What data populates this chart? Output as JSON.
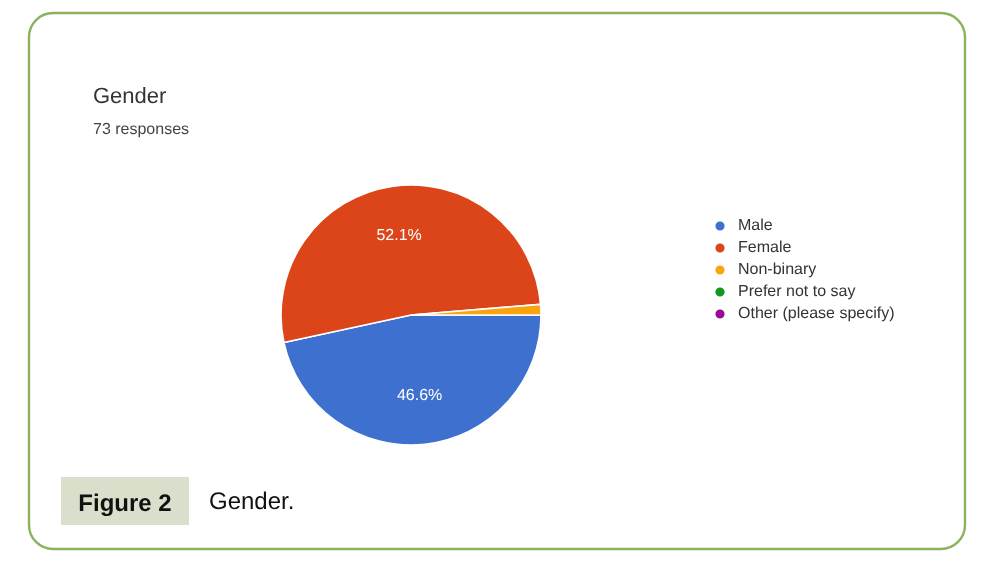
{
  "chart_data": {
    "type": "pie",
    "title": "Gender",
    "subtitle": "73 responses",
    "categories": [
      "Male",
      "Female",
      "Non-binary",
      "Prefer not to say",
      "Other (please specify)"
    ],
    "values": [
      46.6,
      52.1,
      1.3,
      0,
      0
    ],
    "colors": [
      "#3d70cf",
      "#dc4419",
      "#f9a30d",
      "#16961a",
      "#9a0a99"
    ],
    "value_labels": [
      "46.6%",
      "52.1%",
      null,
      null,
      null
    ],
    "legend": "right",
    "annotations": [
      "Figure 2",
      "Gender."
    ]
  }
}
